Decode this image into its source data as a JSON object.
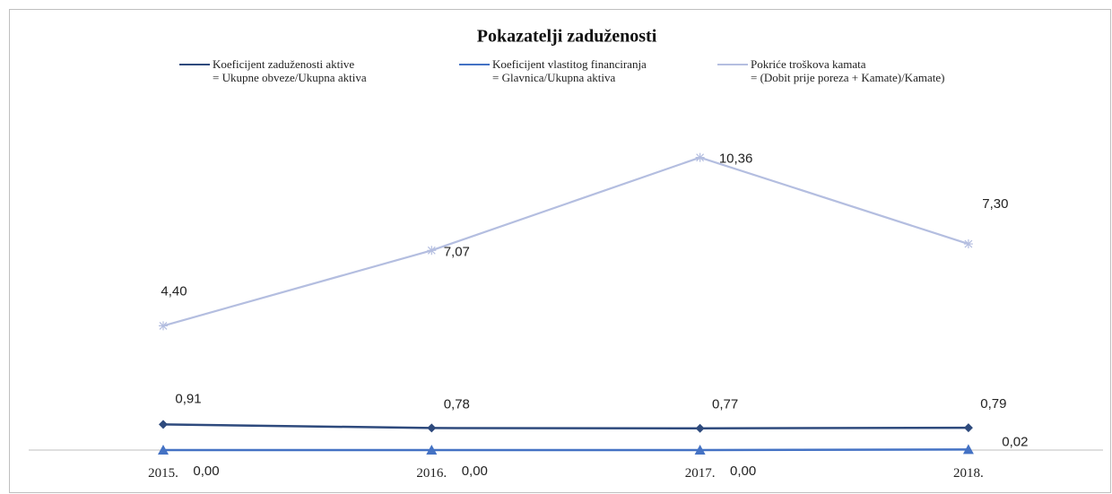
{
  "chart_data": {
    "type": "line",
    "title": "Pokazatelji zaduženosti",
    "categories": [
      "2015.",
      "2016.",
      "2017.",
      "2018."
    ],
    "ylim": [
      0,
      12
    ],
    "series": [
      {
        "name": "Koeficijent zaduženosti aktive\n= Ukupne obveze/Ukupna aktiva",
        "color": "#2e4a7d",
        "marker": "diamond",
        "values": [
          0.91,
          0.78,
          0.77,
          0.79
        ],
        "value_labels": [
          "0,91",
          "0,78",
          "0,77",
          "0,79"
        ]
      },
      {
        "name": "Koeficijent vlastitog financiranja\n= Glavnica/Ukupna aktiva",
        "color": "#4472c4",
        "marker": "triangle",
        "values": [
          0,
          0,
          0,
          0.02
        ],
        "value_labels": [
          "0,00",
          "0,00",
          "0,00",
          "0,02"
        ]
      },
      {
        "name": "Pokriće troškova kamata\n= (Dobit prije poreza + Kamate)/Kamate)",
        "color": "#b4bee0",
        "marker": "star",
        "values": [
          4.4,
          7.07,
          10.36,
          7.3
        ],
        "value_labels": [
          "4,40",
          "7,07",
          "10,36",
          "7,30"
        ]
      }
    ]
  }
}
